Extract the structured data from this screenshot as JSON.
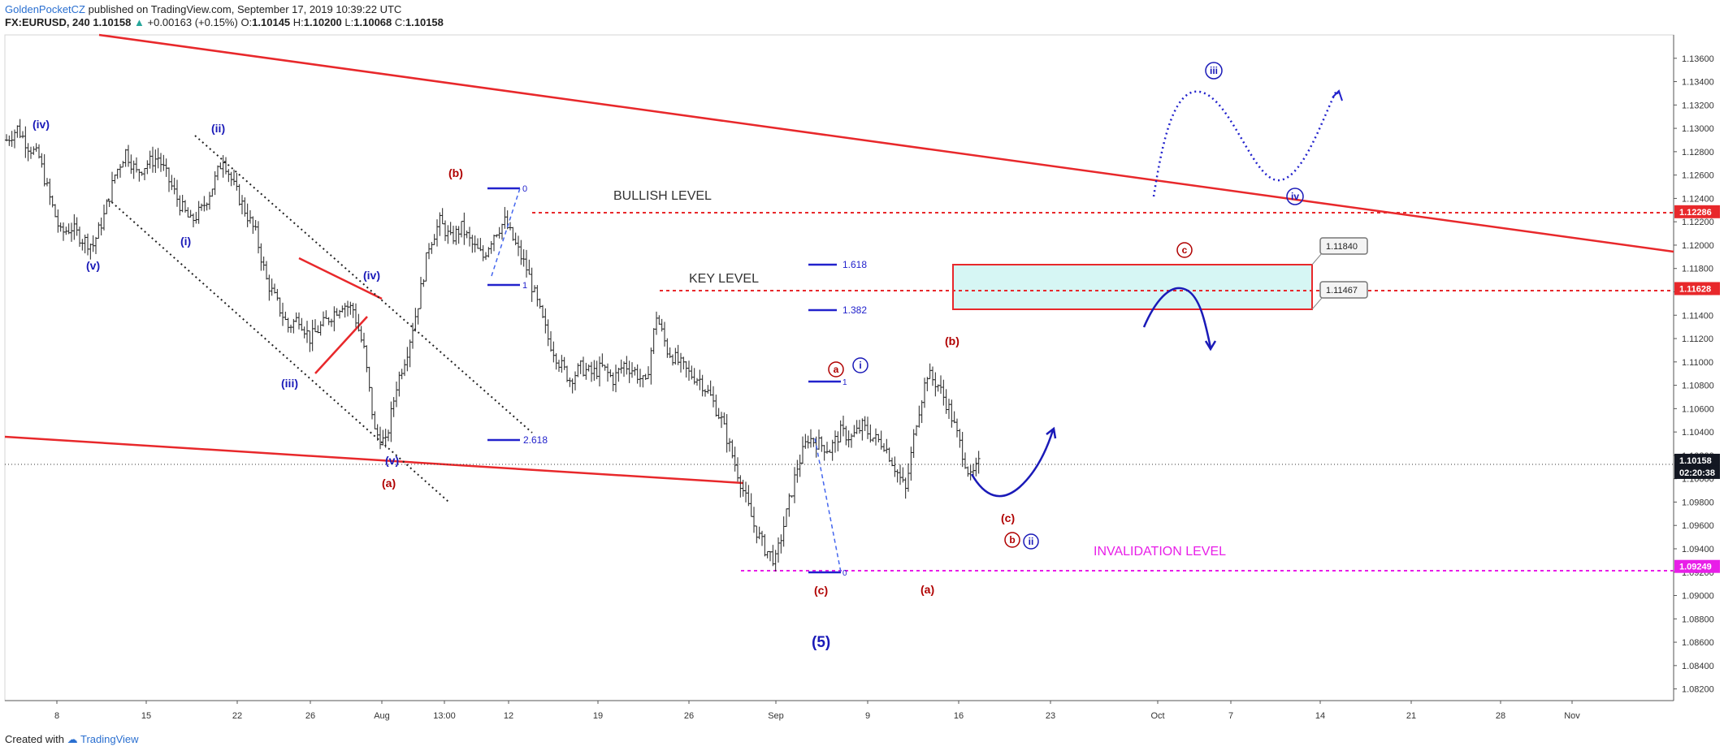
{
  "header": {
    "author": "GoldenPocketCZ",
    "published": "published on TradingView.com, September 17, 2019 10:39:22 UTC",
    "symbol": "FX:EURUSD, 240",
    "last": "1.10158",
    "change": "+0.00163 (+0.15%)",
    "open_label": "O:",
    "open": "1.10145",
    "high_label": "H:",
    "high": "1.10200",
    "low_label": "L:",
    "low": "1.10068",
    "close_label": "C:",
    "close": "1.10158"
  },
  "footer": {
    "created_with": "Created with",
    "brand": "TradingView"
  },
  "colors": {
    "trendline": "#e8282b",
    "wave_blue": "#1a1ab8",
    "wave_red": "#b00000",
    "invalidation": "#e81ee8",
    "zone_fill": "#d6f6f4",
    "price_tag_dark": "#131722"
  },
  "chart_data": {
    "type": "candlestick",
    "symbol": "FX:EURUSD",
    "timeframe": "240",
    "ylim": [
      1.081,
      1.138
    ],
    "y_ticks": [
      "1.13600",
      "1.13400",
      "1.13200",
      "1.13000",
      "1.12800",
      "1.12600",
      "1.12400",
      "1.12200",
      "1.12000",
      "1.11800",
      "1.11600",
      "1.11400",
      "1.11200",
      "1.11000",
      "1.10800",
      "1.10600",
      "1.10400",
      "1.10200",
      "1.10000",
      "1.09800",
      "1.09600",
      "1.09400",
      "1.09200",
      "1.09000",
      "1.08800",
      "1.08600",
      "1.08400",
      "1.08200"
    ],
    "x_ticks": [
      "8",
      "15",
      "22",
      "26",
      "Aug",
      "13:00",
      "12",
      "19",
      "26",
      "Sep",
      "9",
      "16",
      "23",
      "Oct",
      "7",
      "14",
      "21",
      "28",
      "Nov"
    ],
    "price_tags": [
      {
        "value": 1.12286,
        "label": "1.12286",
        "color": "#e8282b"
      },
      {
        "value": 1.11628,
        "label": "1.11628",
        "color": "#e8282b"
      },
      {
        "value": 1.10158,
        "label": "1.10158",
        "color": "#131722"
      },
      {
        "value": 1.10158,
        "label": "02:20:38",
        "color": "#131722",
        "offset": 1
      },
      {
        "value": 1.09249,
        "label": "1.09249",
        "color": "#e81ee8"
      }
    ],
    "levels": [
      {
        "name": "BULLISH LEVEL",
        "value": 1.12286
      },
      {
        "name": "KEY LEVEL",
        "value": 1.11628
      },
      {
        "name": "INVALIDATION LEVEL",
        "value": 1.09249
      }
    ],
    "zone": {
      "top": 1.1184,
      "bottom": 1.11467,
      "top_label": "1.11840",
      "bottom_label": "1.11467"
    },
    "fib_labels": [
      "0",
      "1",
      "1.618",
      "1.382",
      "2.618",
      "1",
      "0"
    ],
    "price_path": [
      [
        0,
        1.129
      ],
      [
        1,
        1.13
      ],
      [
        2,
        1.1285
      ],
      [
        3,
        1.1275
      ],
      [
        4,
        1.124
      ],
      [
        5,
        1.121
      ],
      [
        6,
        1.1215
      ],
      [
        7,
        1.1205
      ],
      [
        8,
        1.12
      ],
      [
        9,
        1.1225
      ],
      [
        10,
        1.126
      ],
      [
        11,
        1.128
      ],
      [
        12,
        1.1262
      ],
      [
        13,
        1.127
      ],
      [
        14,
        1.1275
      ],
      [
        15,
        1.1255
      ],
      [
        16,
        1.1235
      ],
      [
        17,
        1.122
      ],
      [
        18,
        1.123
      ],
      [
        19,
        1.125
      ],
      [
        20,
        1.1275
      ],
      [
        21,
        1.125
      ],
      [
        22,
        1.123
      ],
      [
        23,
        1.121
      ],
      [
        24,
        1.117
      ],
      [
        25,
        1.115
      ],
      [
        26,
        1.113
      ],
      [
        27,
        1.1138
      ],
      [
        28,
        1.112
      ],
      [
        29,
        1.113
      ],
      [
        30,
        1.114
      ],
      [
        31,
        1.115
      ],
      [
        32,
        1.1145
      ],
      [
        33,
        1.111
      ],
      [
        34,
        1.104
      ],
      [
        35,
        1.103
      ],
      [
        36,
        1.108
      ],
      [
        37,
        1.111
      ],
      [
        38,
        1.115
      ],
      [
        39,
        1.12
      ],
      [
        40,
        1.122
      ],
      [
        41,
        1.1205
      ],
      [
        42,
        1.1215
      ],
      [
        43,
        1.12
      ],
      [
        44,
        1.119
      ],
      [
        45,
        1.121
      ],
      [
        46,
        1.122
      ],
      [
        47,
        1.12
      ],
      [
        48,
        1.118
      ],
      [
        49,
        1.115
      ],
      [
        50,
        1.112
      ],
      [
        51,
        1.11
      ],
      [
        52,
        1.1085
      ],
      [
        53,
        1.1095
      ],
      [
        54,
        1.109
      ],
      [
        55,
        1.1095
      ],
      [
        56,
        1.1085
      ],
      [
        57,
        1.1098
      ],
      [
        58,
        1.1092
      ],
      [
        59,
        1.108
      ],
      [
        60,
        1.114
      ],
      [
        61,
        1.111
      ],
      [
        62,
        1.11
      ],
      [
        63,
        1.109
      ],
      [
        64,
        1.1085
      ],
      [
        65,
        1.107
      ],
      [
        66,
        1.105
      ],
      [
        67,
        1.102
      ],
      [
        68,
        1.099
      ],
      [
        69,
        1.096
      ],
      [
        70,
        1.094
      ],
      [
        71,
        1.093
      ],
      [
        72,
        1.097
      ],
      [
        73,
        1.101
      ],
      [
        74,
        1.1035
      ],
      [
        75,
        1.103
      ],
      [
        76,
        1.1025
      ],
      [
        77,
        1.104
      ],
      [
        78,
        1.1035
      ],
      [
        79,
        1.1045
      ],
      [
        80,
        1.1035
      ],
      [
        81,
        1.103
      ],
      [
        82,
        1.101
      ],
      [
        83,
        1.099
      ],
      [
        84,
        1.105
      ],
      [
        85,
        1.109
      ],
      [
        86,
        1.108
      ],
      [
        87,
        1.106
      ],
      [
        88,
        1.103
      ],
      [
        89,
        1.1
      ],
      [
        90,
        1.1016
      ]
    ]
  },
  "annotations": {
    "iv_top": "(iv)",
    "ii_top": "(ii)",
    "v_left": "(v)",
    "i_left": "(i)",
    "iii": "(iii)",
    "iv_mid": "(iv)",
    "v_bottom": "(v)",
    "a_left": "(a)",
    "b_left": "(b)",
    "c_bottom": "(c)",
    "a_bottom": "(a)",
    "b_right": "(b)",
    "c_right": "(c)",
    "five": "(5)",
    "a_circ": "a",
    "i_circ": "i",
    "b_circ": "b",
    "ii_circ": "ii",
    "c_circ": "c",
    "iii_circ": "iii",
    "iv_circ": "iv"
  }
}
